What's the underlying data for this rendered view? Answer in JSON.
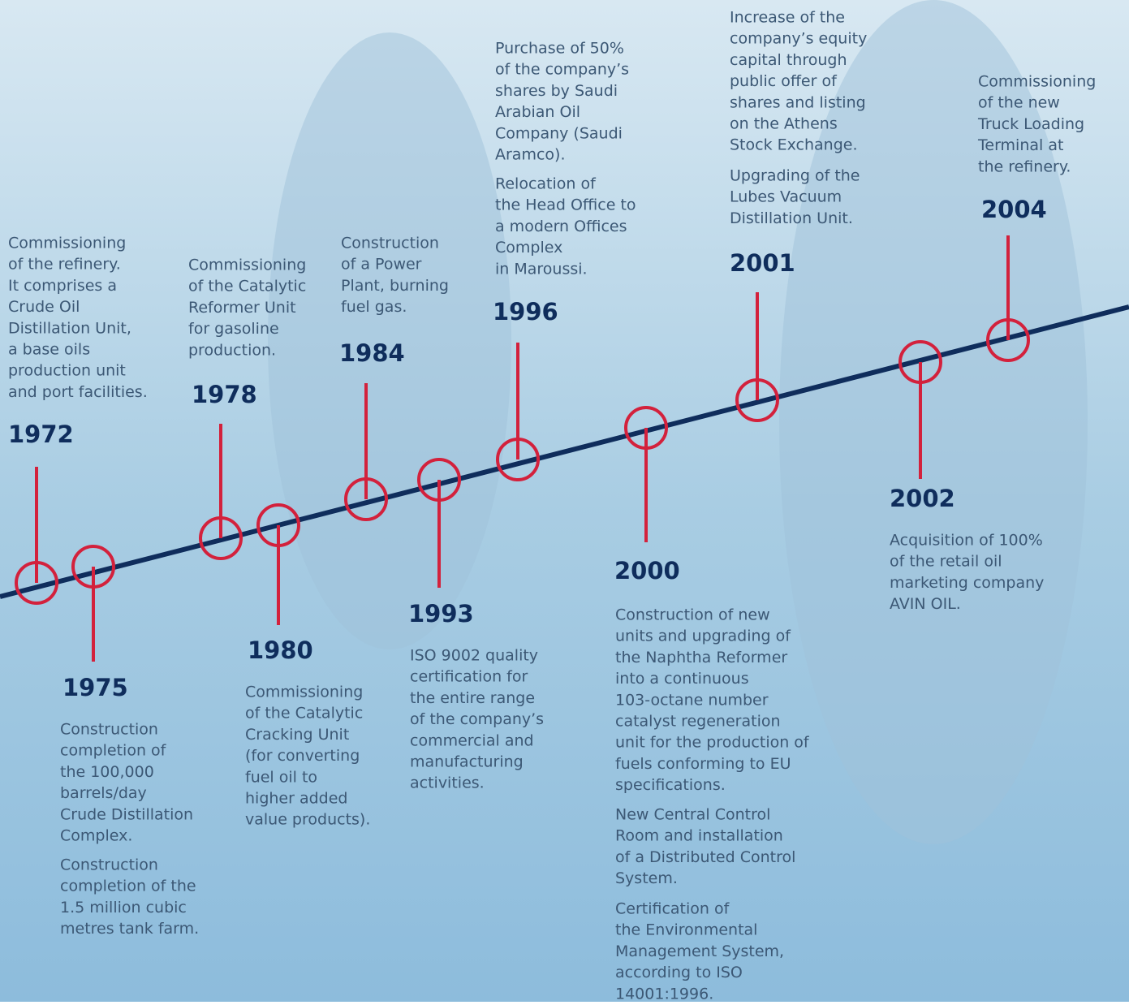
{
  "events": [
    {
      "year": "1972",
      "paragraphs": [
        [
          "Commissioning",
          "of the refinery.",
          "It comprises a",
          "Crude Oil",
          "Distillation Unit,",
          "a base oils",
          "production unit",
          "and port facilities."
        ]
      ]
    },
    {
      "year": "1975",
      "paragraphs": [
        [
          "Construction",
          "completion of",
          "the 100,000",
          "barrels/day",
          "Crude Distillation",
          "Complex."
        ],
        [
          "Construction",
          "completion of the",
          "1.5 million cubic",
          "metres tank farm."
        ]
      ]
    },
    {
      "year": "1978",
      "paragraphs": [
        [
          "Commissioning",
          "of the Catalytic",
          "Reformer Unit",
          "for gasoline",
          "production."
        ]
      ]
    },
    {
      "year": "1980",
      "paragraphs": [
        [
          "Commissioning",
          "of the Catalytic",
          "Cracking Unit",
          "(for converting",
          "fuel oil to",
          "higher added",
          "value products)."
        ]
      ]
    },
    {
      "year": "1984",
      "paragraphs": [
        [
          "Construction",
          "of a Power",
          "Plant, burning",
          "fuel gas."
        ]
      ]
    },
    {
      "year": "1993",
      "paragraphs": [
        [
          "ISO 9002 quality",
          "certification for",
          "the entire range",
          "of the company’s",
          "commercial and",
          "manufacturing",
          "activities."
        ]
      ]
    },
    {
      "year": "1996",
      "paragraphs": [
        [
          "Purchase of 50%",
          "of the company’s",
          "shares by Saudi",
          "Arabian Oil",
          "Company (Saudi",
          "Aramco)."
        ],
        [
          "Relocation of",
          "the Head Office to",
          "a modern Offices",
          "Complex",
          "in Maroussi."
        ]
      ]
    },
    {
      "year": "2000",
      "paragraphs": [
        [
          "Construction of new",
          "units and upgrading of",
          "the Naphtha Reformer",
          "into a continuous",
          "103-octane number",
          "catalyst regeneration",
          "unit for the production of",
          "fuels conforming to EU",
          "specifications."
        ],
        [
          "New Central Control",
          "Room and installation",
          "of a Distributed Control",
          "System."
        ],
        [
          "Certification of",
          "the Environmental",
          "Management System,",
          "according to ISO",
          "14001:1996."
        ]
      ]
    },
    {
      "year": "2001",
      "paragraphs": [
        [
          "Increase of the",
          "company’s equity",
          "capital through",
          "public offer of",
          "shares and listing",
          "on the Athens",
          "Stock Exchange."
        ],
        [
          "Upgrading of the",
          "Lubes Vacuum",
          "Distillation Unit."
        ]
      ]
    },
    {
      "year": "2002",
      "paragraphs": [
        [
          "Acquisition of 100%",
          "of the retail oil",
          "marketing company",
          "AVIN OIL."
        ]
      ]
    },
    {
      "year": "2004",
      "paragraphs": [
        [
          "Commissioning",
          "of the new",
          "Truck Loading",
          "Terminal at",
          "the refinery."
        ]
      ]
    }
  ]
}
